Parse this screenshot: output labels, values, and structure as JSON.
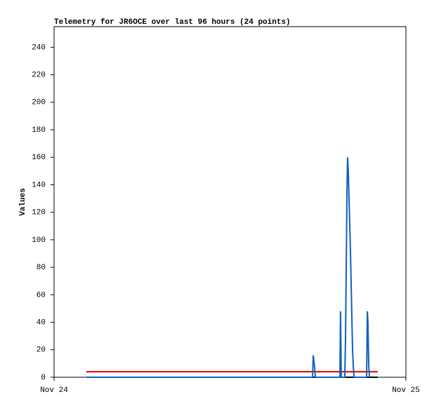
{
  "chart_data": {
    "type": "line",
    "title": "Telemetry for JR6OCE over last 96 hours (24 points)",
    "ylabel": "Values",
    "xlim": [
      0,
      24
    ],
    "xticks": [
      {
        "value": 0,
        "label": "Nov 24"
      },
      {
        "value": 24,
        "label": "Nov 25"
      }
    ],
    "ylim": [
      0,
      255
    ],
    "yticks": [
      0,
      20,
      40,
      60,
      80,
      100,
      120,
      140,
      160,
      180,
      200,
      220,
      240
    ],
    "grid": false,
    "series": [
      {
        "color": "#e00000",
        "x": [
          2.2,
          22.08
        ],
        "values": [
          4,
          4
        ]
      },
      {
        "color": "#000000",
        "x": [
          2.2,
          22.08
        ],
        "values": [
          0,
          0
        ]
      },
      {
        "color": "#1060c0",
        "x": [
          2.2,
          17.63,
          17.68,
          17.72,
          17.77,
          17.82,
          19.5,
          19.54,
          19.59,
          19.83,
          19.88,
          19.93,
          19.98,
          20.02,
          20.07,
          20.12,
          20.17,
          20.22,
          20.26,
          20.31,
          20.36,
          20.41,
          20.46,
          21.32,
          21.37,
          21.41,
          21.46,
          21.51
        ],
        "values": [
          0,
          0,
          16,
          12,
          8,
          0,
          0,
          48,
          0,
          0,
          27,
          80,
          135,
          160,
          150,
          130,
          110,
          90,
          70,
          45,
          20,
          8,
          0,
          0,
          48,
          40,
          10,
          0
        ]
      }
    ]
  }
}
